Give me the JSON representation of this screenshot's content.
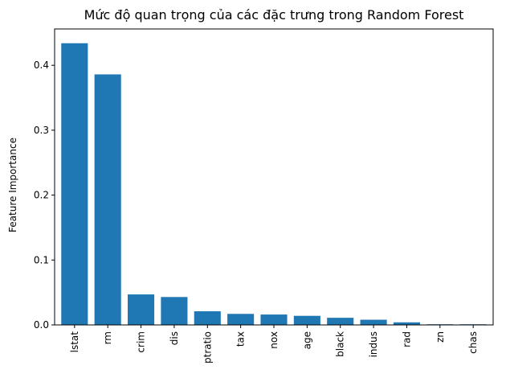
{
  "chart_data": {
    "type": "bar",
    "title": "Mức độ quan trọng của các đặc trưng trong Random Forest",
    "xlabel": "",
    "ylabel": "Feature Importance",
    "categories": [
      "lstat",
      "rm",
      "crim",
      "dis",
      "ptratio",
      "tax",
      "nox",
      "age",
      "black",
      "indus",
      "rad",
      "zn",
      "chas"
    ],
    "values": [
      0.434,
      0.386,
      0.047,
      0.043,
      0.021,
      0.017,
      0.016,
      0.014,
      0.011,
      0.008,
      0.004,
      0.001,
      0.001
    ],
    "yticks": [
      0.0,
      0.1,
      0.2,
      0.3,
      0.4
    ],
    "ytick_labels": [
      "0.0",
      "0.1",
      "0.2",
      "0.3",
      "0.4"
    ],
    "ylim": [
      0,
      0.456
    ],
    "bar_color": "#1f77b4",
    "grid": false
  }
}
